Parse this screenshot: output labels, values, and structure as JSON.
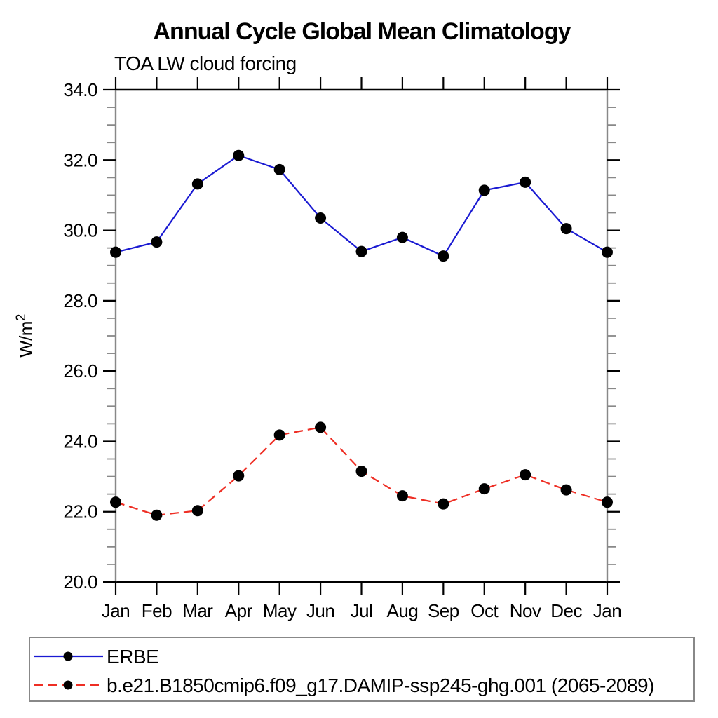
{
  "colors": {
    "background": "#ffffff",
    "frame_horizontal": "#000000",
    "frame_vertical": "#888888",
    "tick_major": "#000000",
    "tick_minor": "#888888",
    "text": "#000000",
    "marker": "#000000",
    "legend_border": "#888888",
    "series_blue": "#1a1ad2",
    "series_red": "#ee2e24"
  },
  "chart_data": {
    "type": "line",
    "title": "Annual Cycle Global Mean Climatology",
    "subtitle": "TOA LW cloud forcing",
    "ylabel": "W/m^2",
    "ylabel_main": "W/m",
    "ylabel_sup": "2",
    "xlabel": "",
    "categories": [
      "Jan",
      "Feb",
      "Mar",
      "Apr",
      "May",
      "Jun",
      "Jul",
      "Aug",
      "Sep",
      "Oct",
      "Nov",
      "Dec",
      "Jan"
    ],
    "ylim": [
      20.0,
      34.0
    ],
    "ytick_major_interval": 2.0,
    "ytick_minor_interval": 0.5,
    "ytick_labels": [
      "20.0",
      "22.0",
      "24.0",
      "26.0",
      "28.0",
      "30.0",
      "32.0",
      "34.0"
    ],
    "grid": false,
    "legend_position": "bottom-left-box",
    "series": [
      {
        "name": "ERBE",
        "color": "#1a1ad2",
        "line_style": "solid",
        "marker": "filled-circle",
        "marker_color": "#000000",
        "values": [
          29.38,
          29.67,
          31.32,
          32.13,
          31.73,
          30.35,
          29.4,
          29.8,
          29.27,
          31.14,
          31.37,
          30.05,
          29.38
        ]
      },
      {
        "name": "b.e21.B1850cmip6.f09_g17.DAMIP-ssp245-ghg.001 (2065-2089)",
        "color": "#ee2e24",
        "line_style": "dashed",
        "marker": "filled-circle",
        "marker_color": "#000000",
        "values": [
          22.27,
          21.9,
          22.03,
          23.02,
          24.18,
          24.4,
          23.15,
          22.45,
          22.22,
          22.65,
          23.05,
          22.62,
          22.27
        ]
      }
    ]
  }
}
